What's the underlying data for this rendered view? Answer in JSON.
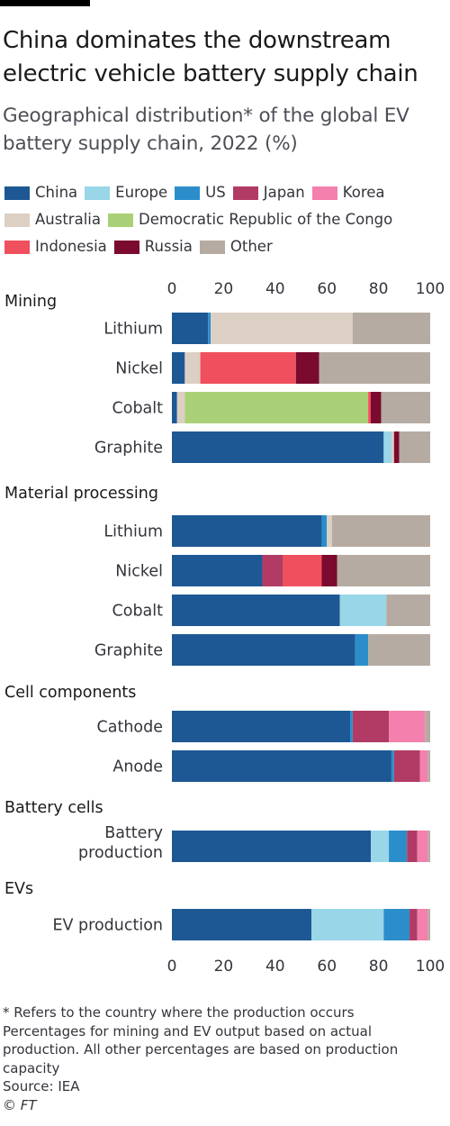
{
  "header": {
    "title": "China dominates the downstream electric vehicle battery supply chain",
    "subtitle": "Geographical distribution* of the global EV battery supply chain, 2022 (%)"
  },
  "colors": {
    "China": "#1d5894",
    "Europe": "#99d6e8",
    "US": "#2b8ecb",
    "Japan": "#b13b64",
    "Korea": "#f480ad",
    "Australia": "#dccfc4",
    "Democratic Republic of the Congo": "#a9d077",
    "Indonesia": "#f0505d",
    "Russia": "#7a0a2e",
    "Other": "#b5aba2"
  },
  "legend": [
    "China",
    "Europe",
    "US",
    "Japan",
    "Korea",
    "Australia",
    "Democratic Republic of the Congo",
    "Indonesia",
    "Russia",
    "Other"
  ],
  "chart_data": {
    "type": "bar",
    "orientation": "horizontal",
    "stacked": true,
    "xlim": [
      0,
      100
    ],
    "xticks": [
      "0",
      "20",
      "40",
      "60",
      "80",
      "100"
    ],
    "grid": false,
    "groups": [
      {
        "name": "Mining",
        "bars": [
          {
            "label": "Lithium",
            "segments": [
              {
                "series": "China",
                "value": 14
              },
              {
                "series": "US",
                "value": 1
              },
              {
                "series": "Australia",
                "value": 55
              },
              {
                "series": "Other",
                "value": 30
              }
            ]
          },
          {
            "label": "Nickel",
            "segments": [
              {
                "series": "China",
                "value": 5
              },
              {
                "series": "Australia",
                "value": 6
              },
              {
                "series": "Indonesia",
                "value": 37
              },
              {
                "series": "Russia",
                "value": 9
              },
              {
                "series": "Other",
                "value": 43
              }
            ]
          },
          {
            "label": "Cobalt",
            "segments": [
              {
                "series": "China",
                "value": 2
              },
              {
                "series": "Australia",
                "value": 3
              },
              {
                "series": "Democratic Republic of the Congo",
                "value": 71
              },
              {
                "series": "Indonesia",
                "value": 1
              },
              {
                "series": "Russia",
                "value": 4
              },
              {
                "series": "Other",
                "value": 19
              }
            ]
          },
          {
            "label": "Graphite",
            "segments": [
              {
                "series": "China",
                "value": 82
              },
              {
                "series": "Europe",
                "value": 3
              },
              {
                "series": "Australia",
                "value": 1
              },
              {
                "series": "Russia",
                "value": 2
              },
              {
                "series": "Other",
                "value": 12
              }
            ]
          }
        ]
      },
      {
        "name": "Material processing",
        "bars": [
          {
            "label": "Lithium",
            "segments": [
              {
                "series": "China",
                "value": 58
              },
              {
                "series": "US",
                "value": 2
              },
              {
                "series": "Australia",
                "value": 2
              },
              {
                "series": "Other",
                "value": 38
              }
            ]
          },
          {
            "label": "Nickel",
            "segments": [
              {
                "series": "China",
                "value": 35
              },
              {
                "series": "Japan",
                "value": 8
              },
              {
                "series": "Indonesia",
                "value": 15
              },
              {
                "series": "Russia",
                "value": 6
              },
              {
                "series": "Other",
                "value": 36
              }
            ]
          },
          {
            "label": "Cobalt",
            "segments": [
              {
                "series": "China",
                "value": 65
              },
              {
                "series": "Europe",
                "value": 18
              },
              {
                "series": "Other",
                "value": 17
              }
            ]
          },
          {
            "label": "Graphite",
            "segments": [
              {
                "series": "China",
                "value": 71
              },
              {
                "series": "US",
                "value": 5
              },
              {
                "series": "Other",
                "value": 24
              }
            ]
          }
        ]
      },
      {
        "name": "Cell components",
        "bars": [
          {
            "label": "Cathode",
            "segments": [
              {
                "series": "China",
                "value": 69
              },
              {
                "series": "US",
                "value": 1
              },
              {
                "series": "Japan",
                "value": 14
              },
              {
                "series": "Korea",
                "value": 14
              },
              {
                "series": "Other",
                "value": 2
              }
            ]
          },
          {
            "label": "Anode",
            "segments": [
              {
                "series": "China",
                "value": 85
              },
              {
                "series": "US",
                "value": 1
              },
              {
                "series": "Japan",
                "value": 10
              },
              {
                "series": "Korea",
                "value": 3
              },
              {
                "series": "Other",
                "value": 1
              }
            ]
          }
        ]
      },
      {
        "name": "Battery cells",
        "bars": [
          {
            "label": "Battery production",
            "segments": [
              {
                "series": "China",
                "value": 77
              },
              {
                "series": "Europe",
                "value": 7
              },
              {
                "series": "US",
                "value": 7
              },
              {
                "series": "Japan",
                "value": 4
              },
              {
                "series": "Korea",
                "value": 4
              },
              {
                "series": "Other",
                "value": 1
              }
            ]
          }
        ]
      },
      {
        "name": "EVs",
        "bars": [
          {
            "label": "EV production",
            "segments": [
              {
                "series": "China",
                "value": 54
              },
              {
                "series": "Europe",
                "value": 28
              },
              {
                "series": "US",
                "value": 10
              },
              {
                "series": "Japan",
                "value": 3
              },
              {
                "series": "Korea",
                "value": 4
              },
              {
                "series": "Other",
                "value": 1
              }
            ]
          }
        ]
      }
    ]
  },
  "footnotes": {
    "note": "* Refers to the country where the production occurs",
    "method_line1": "Percentages for mining and EV output based on actual",
    "method_line2": "production. All other percentages are based on production",
    "method_line3": "capacity",
    "source": "Source: IEA",
    "copyright": "© FT"
  }
}
